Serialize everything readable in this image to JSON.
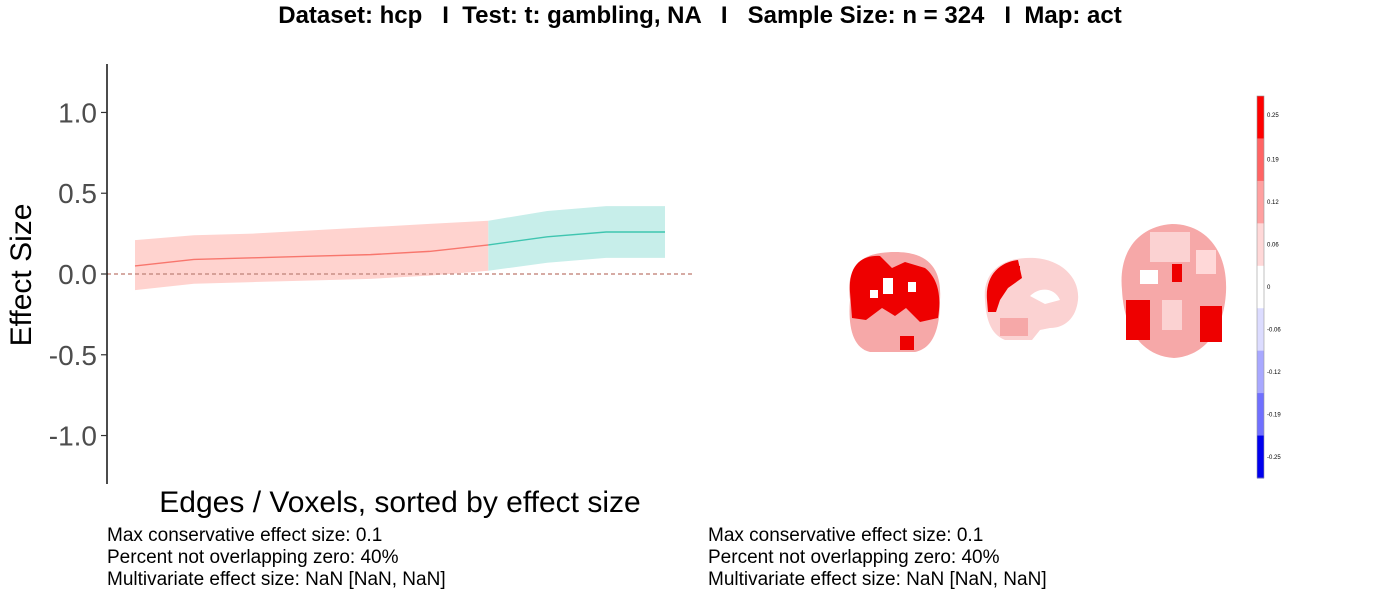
{
  "title": "Dataset: hcp   I  Test: t: gambling, NA   I   Sample Size: n = 324   I  Map: act",
  "chart_data": {
    "type": "area",
    "xlabel": "Edges / Voxels, sorted by effect size",
    "ylabel": "Effect Size",
    "ylim": [
      -1.3,
      1.3
    ],
    "yticks": [
      {
        "value": 1.0,
        "label": "1.0"
      },
      {
        "value": 0.5,
        "label": "0.5"
      },
      {
        "value": 0.0,
        "label": "0.0"
      },
      {
        "value": -0.5,
        "label": "-0.5"
      },
      {
        "value": -1.0,
        "label": "-1.0"
      }
    ],
    "reference_line": 0,
    "series": [
      {
        "color": "#F8766D",
        "fill": "#FFD3CF",
        "x": [
          0,
          1,
          2,
          3,
          4,
          5,
          6
        ],
        "estimate": [
          0.05,
          0.09,
          0.1,
          0.11,
          0.12,
          0.14,
          0.18
        ],
        "lower": [
          -0.1,
          -0.06,
          -0.05,
          -0.04,
          -0.03,
          -0.01,
          0.02
        ],
        "upper": [
          0.21,
          0.24,
          0.25,
          0.27,
          0.29,
          0.31,
          0.33
        ]
      },
      {
        "color": "#3FC5B0",
        "fill": "#C7EEEA",
        "x": [
          6,
          7,
          8,
          9
        ],
        "estimate": [
          0.18,
          0.23,
          0.26,
          0.26
        ],
        "lower": [
          0.02,
          0.07,
          0.1,
          0.1
        ],
        "upper": [
          0.33,
          0.39,
          0.42,
          0.42
        ]
      }
    ],
    "x_count": 10,
    "brain_map_colorbar": {
      "labels": [
        "0.25",
        "0.19",
        "0.12",
        "0.06",
        "0",
        "-0.06",
        "-0.12",
        "-0.19",
        "-0.25"
      ],
      "colors": [
        "#FF0000",
        "#FF6464",
        "#FFA0A0",
        "#FFD8D8",
        "#FFFFFF",
        "#DCDCFF",
        "#A8A8FF",
        "#7070FF",
        "#0000EE"
      ]
    }
  },
  "stats_left": {
    "line1": "Max conservative effect size: 0.1",
    "line2": "Percent not overlapping zero: 40%",
    "line3": "Multivariate effect size: NaN [NaN, NaN]"
  },
  "stats_right": {
    "line1": "Max conservative effect size: 0.1",
    "line2": "Percent not overlapping zero: 40%",
    "line3": "Multivariate effect size: NaN [NaN, NaN]"
  },
  "colors": {
    "brain_red": "#EE0000",
    "brain_light": "#F6A8A8",
    "brain_pale": "#FBD2D2"
  }
}
